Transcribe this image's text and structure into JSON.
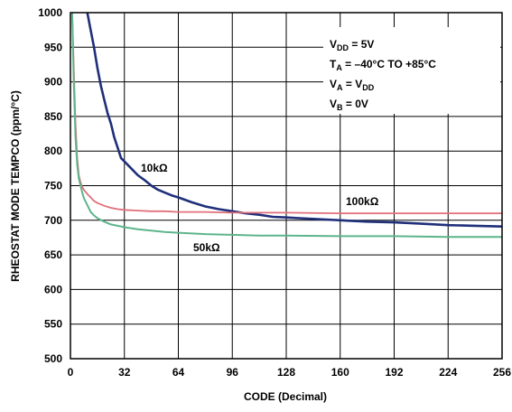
{
  "chart_data": {
    "type": "line",
    "title": "",
    "xlabel": "CODE (Decimal)",
    "ylabel": "RHEOSTAT MODE TEMPCO (ppm/°C)",
    "xlim": [
      0,
      256
    ],
    "ylim": [
      500,
      1000
    ],
    "xticks": [
      0,
      32,
      64,
      96,
      128,
      160,
      192,
      224,
      256
    ],
    "yticks": [
      500,
      550,
      600,
      650,
      700,
      750,
      800,
      850,
      900,
      950,
      1000
    ],
    "grid": true,
    "legend": "none",
    "conditions": {
      "line1_main": "V",
      "line1_sub": "DD",
      "line1_rest": " = 5V",
      "line2_main": "T",
      "line2_sub": "A",
      "line2_rest": " = –40°C TO +85°C",
      "line3_main": "V",
      "line3_sub": "A",
      "line3_mid": " = V",
      "line3_sub2": "DD",
      "line4_main": "V",
      "line4_sub": "B",
      "line4_rest": " = 0V"
    },
    "series": [
      {
        "name": "10kΩ",
        "color": "#1f2f7a",
        "x": [
          10,
          12,
          14,
          16,
          18,
          20,
          22,
          24,
          26,
          28,
          30,
          32,
          36,
          40,
          44,
          48,
          52,
          56,
          60,
          64,
          72,
          80,
          88,
          96,
          104,
          112,
          120,
          128,
          136,
          144,
          152,
          160,
          176,
          192,
          208,
          224,
          240,
          256
        ],
        "y": [
          1000,
          975,
          950,
          920,
          895,
          875,
          855,
          840,
          820,
          805,
          790,
          785,
          775,
          765,
          758,
          750,
          744,
          740,
          736,
          733,
          726,
          720,
          716,
          713,
          710,
          708,
          705,
          704,
          703,
          702,
          701,
          700,
          698,
          697,
          695,
          693,
          692,
          691
        ]
      },
      {
        "name": "100kΩ",
        "color": "#e0707a",
        "x": [
          1,
          2,
          3,
          4,
          5,
          6,
          7,
          8,
          10,
          12,
          14,
          16,
          20,
          24,
          28,
          32,
          40,
          48,
          56,
          64,
          80,
          96,
          112,
          128,
          160,
          192,
          224,
          256
        ],
        "y": [
          1000,
          920,
          840,
          790,
          765,
          755,
          748,
          744,
          738,
          733,
          728,
          725,
          721,
          718,
          716,
          715,
          714,
          713,
          713,
          712,
          712,
          711,
          711,
          711,
          710,
          710,
          710,
          710
        ]
      },
      {
        "name": "50kΩ",
        "color": "#5db58c",
        "x": [
          1,
          2,
          3,
          4,
          5,
          6,
          7,
          8,
          10,
          12,
          14,
          16,
          20,
          24,
          28,
          32,
          40,
          48,
          56,
          64,
          80,
          96,
          112,
          128,
          160,
          192,
          224,
          256
        ],
        "y": [
          1000,
          900,
          820,
          780,
          760,
          750,
          740,
          732,
          722,
          712,
          707,
          703,
          698,
          694,
          692,
          690,
          687,
          685,
          683,
          682,
          680,
          679,
          678,
          678,
          677,
          677,
          676,
          676
        ]
      }
    ]
  }
}
